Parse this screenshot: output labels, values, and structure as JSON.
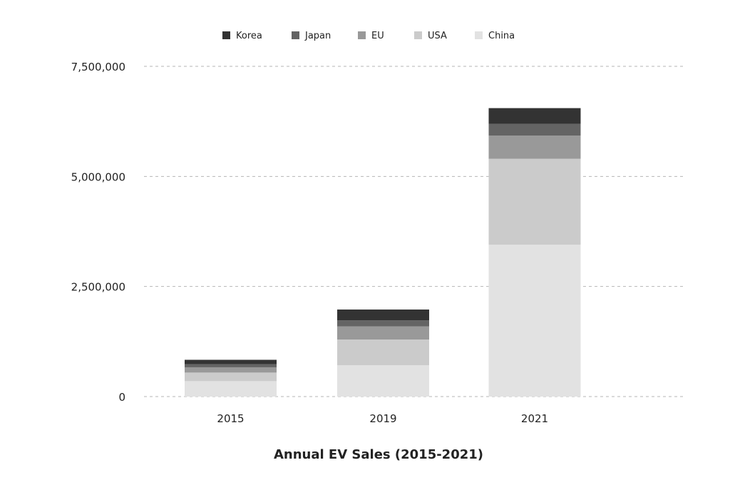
{
  "chart_data": {
    "type": "bar",
    "stacked": true,
    "title": "Annual EV Sales (2015-2021)",
    "xlabel": "",
    "ylabel": "",
    "categories": [
      "2015",
      "2019",
      "2021"
    ],
    "ylim": [
      0,
      7500000
    ],
    "yticks": [
      0,
      2500000,
      5000000,
      7500000
    ],
    "ytick_labels": [
      "0",
      "2,500,000",
      "5,000,000",
      "7,500,000"
    ],
    "grid": "horizontal dashed",
    "legend_placement": "top",
    "series": [
      {
        "name": "China",
        "color": "#e2e2e2",
        "values": [
          350000,
          713000,
          3450000
        ]
      },
      {
        "name": "USA",
        "color": "#cbcbcb",
        "values": [
          195000,
          583000,
          1950000
        ]
      },
      {
        "name": "EU",
        "color": "#999999",
        "values": [
          120000,
          297000,
          525000
        ]
      },
      {
        "name": "Japan",
        "color": "#646464",
        "values": [
          70000,
          136000,
          270000
        ]
      },
      {
        "name": "Korea",
        "color": "#333333",
        "values": [
          100000,
          248000,
          356000
        ]
      }
    ],
    "legend_order": [
      "Korea",
      "Japan",
      "EU",
      "USA",
      "China"
    ]
  }
}
